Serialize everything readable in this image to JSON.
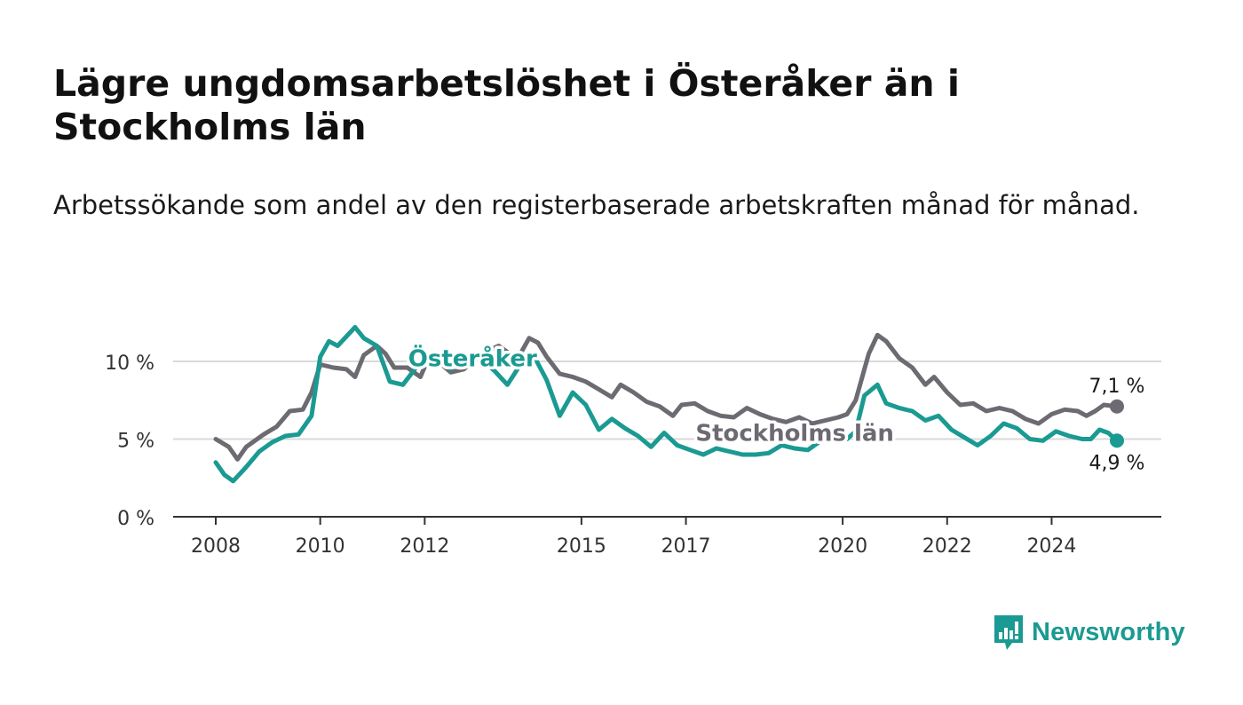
{
  "title": "Lägre ungdomsarbetslöshet i Österåker än i Stockholms län",
  "subtitle": "Arbetssökande som andel av den registerbaserade arbetskraften månad för månad.",
  "brand": {
    "name": "Newsworthy",
    "color": "#1a9a92",
    "icon": "bar-chart-speech-bubble-icon"
  },
  "chart_data": {
    "type": "line",
    "title": "",
    "xlabel": "",
    "ylabel": "",
    "ylim": [
      0,
      13
    ],
    "xlim": [
      "2008-01",
      "2025-06"
    ],
    "y_ticks": [
      0,
      5,
      10
    ],
    "y_tick_labels": [
      "0 %",
      "5 %",
      "10 %"
    ],
    "x_ticks": [
      "2008",
      "2010",
      "2012",
      "2015",
      "2017",
      "2020",
      "2022",
      "2024"
    ],
    "grid": "horizontal",
    "series": [
      {
        "name": "Stockholms län",
        "color": "#6d6a72",
        "end_label": "7,1 %",
        "points": [
          [
            "2008-01",
            5.0
          ],
          [
            "2008-04",
            4.5
          ],
          [
            "2008-06",
            3.7
          ],
          [
            "2008-08",
            4.5
          ],
          [
            "2008-12",
            5.3
          ],
          [
            "2009-03",
            5.8
          ],
          [
            "2009-06",
            6.8
          ],
          [
            "2009-09",
            6.9
          ],
          [
            "2009-11",
            8.0
          ],
          [
            "2010-01",
            9.8
          ],
          [
            "2010-04",
            9.6
          ],
          [
            "2010-07",
            9.5
          ],
          [
            "2010-09",
            9.0
          ],
          [
            "2010-11",
            10.4
          ],
          [
            "2011-02",
            11.0
          ],
          [
            "2011-04",
            10.5
          ],
          [
            "2011-06",
            9.6
          ],
          [
            "2011-09",
            9.6
          ],
          [
            "2011-12",
            9.0
          ],
          [
            "2012-02",
            10.3
          ],
          [
            "2012-04",
            10.0
          ],
          [
            "2012-07",
            9.3
          ],
          [
            "2012-10",
            9.5
          ],
          [
            "2013-02",
            10.5
          ],
          [
            "2013-06",
            11.0
          ],
          [
            "2013-08",
            10.6
          ],
          [
            "2013-10",
            10.0
          ],
          [
            "2014-01",
            11.5
          ],
          [
            "2014-03",
            11.2
          ],
          [
            "2014-05",
            10.3
          ],
          [
            "2014-08",
            9.2
          ],
          [
            "2014-11",
            9.0
          ],
          [
            "2015-02",
            8.7
          ],
          [
            "2015-05",
            8.2
          ],
          [
            "2015-08",
            7.7
          ],
          [
            "2015-10",
            8.5
          ],
          [
            "2016-01",
            8.0
          ],
          [
            "2016-04",
            7.4
          ],
          [
            "2016-07",
            7.1
          ],
          [
            "2016-10",
            6.5
          ],
          [
            "2016-12",
            7.2
          ],
          [
            "2017-03",
            7.3
          ],
          [
            "2017-06",
            6.8
          ],
          [
            "2017-09",
            6.5
          ],
          [
            "2017-12",
            6.4
          ],
          [
            "2018-03",
            7.0
          ],
          [
            "2018-06",
            6.6
          ],
          [
            "2018-09",
            6.3
          ],
          [
            "2018-12",
            6.1
          ],
          [
            "2019-03",
            6.4
          ],
          [
            "2019-06",
            6.0
          ],
          [
            "2019-09",
            6.2
          ],
          [
            "2019-12",
            6.4
          ],
          [
            "2020-02",
            6.6
          ],
          [
            "2020-04",
            7.5
          ],
          [
            "2020-07",
            10.5
          ],
          [
            "2020-09",
            11.7
          ],
          [
            "2020-11",
            11.3
          ],
          [
            "2021-02",
            10.2
          ],
          [
            "2021-05",
            9.6
          ],
          [
            "2021-08",
            8.5
          ],
          [
            "2021-10",
            9.0
          ],
          [
            "2022-01",
            8.0
          ],
          [
            "2022-04",
            7.2
          ],
          [
            "2022-07",
            7.3
          ],
          [
            "2022-10",
            6.8
          ],
          [
            "2023-01",
            7.0
          ],
          [
            "2023-04",
            6.8
          ],
          [
            "2023-07",
            6.3
          ],
          [
            "2023-10",
            6.0
          ],
          [
            "2024-01",
            6.6
          ],
          [
            "2024-04",
            6.9
          ],
          [
            "2024-07",
            6.8
          ],
          [
            "2024-09",
            6.5
          ],
          [
            "2024-11",
            6.8
          ],
          [
            "2025-01",
            7.2
          ],
          [
            "2025-04",
            7.1
          ]
        ]
      },
      {
        "name": "Österåker",
        "color": "#1a9a92",
        "end_label": "4,9 %",
        "points": [
          [
            "2008-01",
            3.5
          ],
          [
            "2008-03",
            2.7
          ],
          [
            "2008-05",
            2.3
          ],
          [
            "2008-08",
            3.2
          ],
          [
            "2008-11",
            4.2
          ],
          [
            "2009-02",
            4.8
          ],
          [
            "2009-05",
            5.2
          ],
          [
            "2009-08",
            5.3
          ],
          [
            "2009-11",
            6.5
          ],
          [
            "2010-01",
            10.3
          ],
          [
            "2010-03",
            11.3
          ],
          [
            "2010-05",
            11.0
          ],
          [
            "2010-07",
            11.6
          ],
          [
            "2010-09",
            12.2
          ],
          [
            "2010-11",
            11.5
          ],
          [
            "2011-02",
            11.0
          ],
          [
            "2011-05",
            8.7
          ],
          [
            "2011-08",
            8.5
          ],
          [
            "2011-11",
            9.6
          ],
          [
            "2012-02",
            10.4
          ],
          [
            "2012-05",
            9.9
          ],
          [
            "2012-07",
            9.5
          ],
          [
            "2012-09",
            10.3
          ],
          [
            "2013-01",
            10.4
          ],
          [
            "2013-05",
            9.4
          ],
          [
            "2013-08",
            8.5
          ],
          [
            "2013-11",
            9.8
          ],
          [
            "2014-02",
            10.4
          ],
          [
            "2014-05",
            8.8
          ],
          [
            "2014-08",
            6.5
          ],
          [
            "2014-11",
            8.0
          ],
          [
            "2015-02",
            7.2
          ],
          [
            "2015-05",
            5.6
          ],
          [
            "2015-08",
            6.3
          ],
          [
            "2015-11",
            5.7
          ],
          [
            "2016-02",
            5.2
          ],
          [
            "2016-05",
            4.5
          ],
          [
            "2016-08",
            5.4
          ],
          [
            "2016-11",
            4.6
          ],
          [
            "2017-02",
            4.3
          ],
          [
            "2017-05",
            4.0
          ],
          [
            "2017-08",
            4.4
          ],
          [
            "2017-11",
            4.2
          ],
          [
            "2018-02",
            4.0
          ],
          [
            "2018-05",
            4.0
          ],
          [
            "2018-08",
            4.1
          ],
          [
            "2018-11",
            4.6
          ],
          [
            "2019-02",
            4.4
          ],
          [
            "2019-05",
            4.3
          ],
          [
            "2019-08",
            4.9
          ],
          [
            "2019-11",
            5.6
          ],
          [
            "2020-02",
            5.0
          ],
          [
            "2020-04",
            5.5
          ],
          [
            "2020-06",
            7.8
          ],
          [
            "2020-09",
            8.5
          ],
          [
            "2020-11",
            7.3
          ],
          [
            "2021-02",
            7.0
          ],
          [
            "2021-05",
            6.8
          ],
          [
            "2021-08",
            6.2
          ],
          [
            "2021-11",
            6.5
          ],
          [
            "2022-02",
            5.6
          ],
          [
            "2022-05",
            5.1
          ],
          [
            "2022-08",
            4.6
          ],
          [
            "2022-11",
            5.2
          ],
          [
            "2023-02",
            6.0
          ],
          [
            "2023-05",
            5.7
          ],
          [
            "2023-08",
            5.0
          ],
          [
            "2023-11",
            4.9
          ],
          [
            "2024-02",
            5.5
          ],
          [
            "2024-05",
            5.2
          ],
          [
            "2024-08",
            5.0
          ],
          [
            "2024-10",
            5.0
          ],
          [
            "2024-12",
            5.6
          ],
          [
            "2025-02",
            5.4
          ],
          [
            "2025-04",
            4.9
          ]
        ]
      }
    ],
    "series_labels": [
      {
        "text": "Österåker",
        "series": 1,
        "at": [
          "2012-12",
          10.2
        ]
      },
      {
        "text": "Stockholms län",
        "series": 0,
        "at": [
          "2019-02",
          5.4
        ]
      }
    ]
  }
}
